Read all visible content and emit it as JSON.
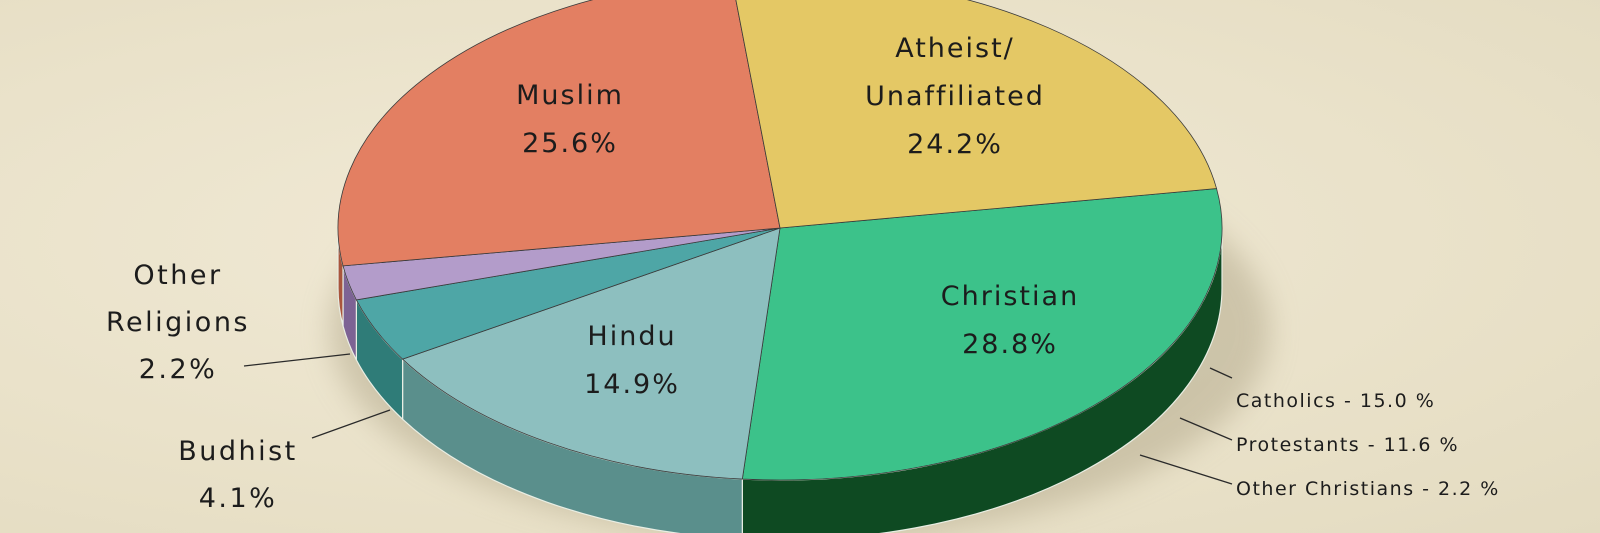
{
  "chart_data": {
    "type": "pie",
    "style": "3d-tilted",
    "slices": [
      {
        "key": "christian",
        "lines": [
          "Christian",
          "28.8%"
        ],
        "value": 28.8,
        "color": "#3cc28a",
        "side": "#0e4a22"
      },
      {
        "key": "hindu",
        "lines": [
          "Hindu",
          "14.9%"
        ],
        "value": 14.9,
        "color": "#8dbfbf",
        "side": "#5a8f8c"
      },
      {
        "key": "budhist",
        "lines": [
          "Budhist",
          "4.1%"
        ],
        "value": 4.1,
        "color": "#4ea6a6",
        "side": "#2f7c78"
      },
      {
        "key": "other-religions",
        "lines": [
          "Other",
          "Religions",
          "2.2%"
        ],
        "value": 2.2,
        "color": "#b39cca",
        "side": "#7d6394"
      },
      {
        "key": "muslim",
        "lines": [
          "Muslim",
          "25.6%"
        ],
        "value": 25.6,
        "color": "#e37f62",
        "side": "#a9553c"
      },
      {
        "key": "atheist",
        "lines": [
          "Atheist/",
          "Unaffiliated",
          "24.2%"
        ],
        "value": 24.2,
        "color": "#e4c865",
        "side": "#a8903c"
      }
    ],
    "christian_breakdown": [
      "Catholics - 15.0 %",
      "Protestants - 11.6 %",
      "Other Christians - 2.2 %"
    ]
  }
}
